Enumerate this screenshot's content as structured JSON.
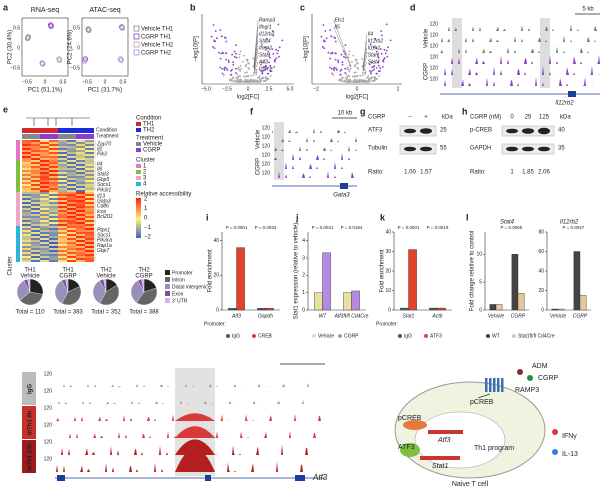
{
  "panels": [
    "a",
    "b",
    "c",
    "d",
    "e",
    "f",
    "g",
    "h",
    "i",
    "j",
    "k",
    "l"
  ],
  "a": {
    "titles": [
      "RNA-seq",
      "ATAC-seq"
    ],
    "xlabels": [
      "PC1 (51.1%)",
      "PC1 (31.7%)"
    ],
    "ylabels": [
      "PC2 (30.4%)",
      "PC2 (24.6%)"
    ],
    "ticks": [
      "−0.5",
      "0",
      "0.5"
    ],
    "legend": [
      "Vehicle TH1",
      "CGRP TH1",
      "Vehicle TH2",
      "CGRP TH2"
    ]
  },
  "b": {
    "genes": [
      "Ramp3",
      "Ifngr1",
      "Il12rb2",
      "Stat4",
      "Ifngr2",
      "Stat1",
      "Atf3",
      "Il18r1"
    ],
    "xlabel": "log2[FC]",
    "ylabel": "−log10[P]",
    "xticks": [
      "−5.0",
      "−2.5",
      "0",
      "2.5",
      "5.0"
    ]
  },
  "c": {
    "genes": [
      "Ets1",
      "Il5",
      "Il4",
      "Il12rb2",
      "Il18r1",
      "Stat1",
      "Stat4"
    ],
    "xlabel": "log2[FC]",
    "ylabel": "−log10[P]",
    "xticks": [
      "−2",
      "0",
      "2"
    ]
  },
  "d": {
    "scale": "5 kb",
    "tracks": [
      "Vehicle",
      "CGRP"
    ],
    "gene": "Il12rb2",
    "axis": "120"
  },
  "e": {
    "rows": [
      "Condition",
      "Treatment"
    ],
    "condition_title": "Condition",
    "condition": [
      "TH1",
      "TH2"
    ],
    "treatment_title": "Treatment",
    "treatment": [
      "Vehicle",
      "CGRP"
    ],
    "cluster_title": "Cluster",
    "clusters": [
      "1",
      "2",
      "3",
      "4"
    ],
    "cluster_side": "Cluster",
    "scale_title": "Relative accessibility",
    "scale": [
      "2",
      "1",
      "0",
      "−1",
      "−2"
    ],
    "genes": [
      [
        "Zap70",
        "Il2",
        "Pik3"
      ],
      [
        "Il4",
        "Il6",
        "Stat3",
        "Gbp5",
        "Socs1",
        "Pik3r1"
      ],
      [
        "Il13",
        "Gata3",
        "Cd86",
        "Icos",
        "Bcl2l11"
      ],
      [
        "Ptpn1",
        "Socs1",
        "Pik3ca",
        "Rap1a",
        "Gbp7"
      ]
    ],
    "pies": [
      {
        "label": [
          "TH1",
          "Vehicle"
        ],
        "total": "Total = 110",
        "segments": [
          28,
          36,
          28,
          5,
          3
        ]
      },
      {
        "label": [
          "TH1",
          "CGRP"
        ],
        "total": "Total = 383",
        "segments": [
          18,
          40,
          34,
          5,
          3
        ]
      },
      {
        "label": [
          "TH2",
          "Vehicle"
        ],
        "total": "Total = 352",
        "segments": [
          16,
          42,
          34,
          5,
          3
        ]
      },
      {
        "label": [
          "TH2",
          "CGRP"
        ],
        "total": "Total = 388",
        "segments": [
          20,
          40,
          32,
          5,
          3
        ]
      }
    ],
    "pie_legend": [
      "Promoter",
      "Intron",
      "Distal intergenic",
      "Exon",
      "3′ UTR"
    ],
    "pie_colors": [
      "#222",
      "#666",
      "#9a8fb8",
      "#7b4fa8",
      "#c9b7e0"
    ]
  },
  "f": {
    "scale": "10 kb",
    "tracks": [
      "Vehicle",
      "CGRP"
    ],
    "gene": "Gata3",
    "axis": "120"
  },
  "g": {
    "treat": "CGRP",
    "signs": [
      "−",
      "+"
    ],
    "kda": "kDa",
    "bands": [
      "ATF3",
      "Tubulin"
    ],
    "mw": [
      "25",
      "55"
    ],
    "ratio": "Ratio:",
    "ratios": [
      "1.00",
      "1.57"
    ]
  },
  "h": {
    "treat": "CGRP (nM)",
    "doses": [
      "0",
      "25",
      "125"
    ],
    "kda": "kDa",
    "bands": [
      "p-CREB",
      "GAPDH"
    ],
    "mw": [
      "40",
      "35"
    ],
    "ratio": "Ratio:",
    "ratios": [
      "1",
      "1.85",
      "2.06"
    ]
  },
  "i": {
    "ylabel": "Fold enrichment",
    "prefix": "Promoter:",
    "groups": [
      "Atf3",
      "Gapdh"
    ],
    "pvalues": [
      "P = 0.0001",
      "P = 0.0033"
    ],
    "ylim": [
      0,
      45
    ],
    "yticks": [
      0,
      20,
      40
    ],
    "series": [
      {
        "name": "IgG",
        "color": "#555",
        "values": [
          1,
          1
        ]
      },
      {
        "name": "CREB",
        "color": "#e0442c",
        "values": [
          36,
          1
        ]
      }
    ]
  },
  "j": {
    "ylabel": "Stat1 expression (relative to vehicle)",
    "groups": [
      "WT",
      "Atf3fl/fl Cd4Cre"
    ],
    "pvalues": [
      "P = 0.0031",
      "P = 0.0184"
    ],
    "ylim": [
      0,
      4.5
    ],
    "yticks": [
      0,
      1,
      2,
      3,
      4
    ],
    "series": [
      {
        "name": "Vehicle",
        "color": "#e8e0a0",
        "values": [
          1,
          1
        ]
      },
      {
        "name": "CGRP",
        "color": "#b58be0",
        "values": [
          3.3,
          1.1
        ]
      }
    ]
  },
  "k": {
    "ylabel": "Fold enrichment",
    "prefix": "Promoter:",
    "groups": [
      "Stat1",
      "Actb"
    ],
    "pvalues": [
      "P = 0.0001",
      "P = 0.0019"
    ],
    "ylim": [
      0,
      40
    ],
    "yticks": [
      0,
      10,
      20,
      30,
      40
    ],
    "series": [
      {
        "name": "IgG",
        "color": "#555",
        "values": [
          1,
          1
        ]
      },
      {
        "name": "ATF3",
        "color": "#e0442c",
        "values": [
          31,
          1
        ]
      }
    ]
  },
  "l": {
    "ylabel": "Fold change relative to control",
    "plots": [
      {
        "title": "Stat4",
        "groups": [
          "Vehicle",
          "CGRP"
        ],
        "pvalue": "P = 0.0065",
        "ylim": [
          0,
          14
        ],
        "yticks": [
          0,
          5,
          10
        ],
        "values": [
          [
            1,
            10
          ],
          [
            1,
            3
          ]
        ]
      },
      {
        "title": "Il12rb2",
        "groups": [
          "Vehicle",
          "CGRP"
        ],
        "pvalue": "P = 0.0047",
        "ylim": [
          0,
          80
        ],
        "yticks": [
          0,
          20,
          40,
          60,
          80
        ],
        "values": [
          [
            1,
            60
          ],
          [
            1,
            15
          ]
        ]
      }
    ],
    "series": [
      {
        "name": "WT",
        "color": "#444"
      },
      {
        "name": "Stat1fl/fl Cd4Cre",
        "color": "#e8c79a"
      }
    ]
  },
  "track": {
    "rows": [
      "IgG",
      "mTh1 8h",
      "mTh1 24h"
    ],
    "axis": "120",
    "gene": "Atf3"
  },
  "diagram": {
    "ligands": [
      "ADM",
      "CGRP"
    ],
    "receptor": "RAMP3",
    "pcreb": [
      "pCREB",
      "pCREB"
    ],
    "atf3_gene": "Atf3",
    "atf3": "ATF3",
    "program": "Th1 program",
    "stat1": "Stat1",
    "ifng": "IFNγ",
    "il13": "IL-13",
    "cell": "Naive T cell"
  }
}
